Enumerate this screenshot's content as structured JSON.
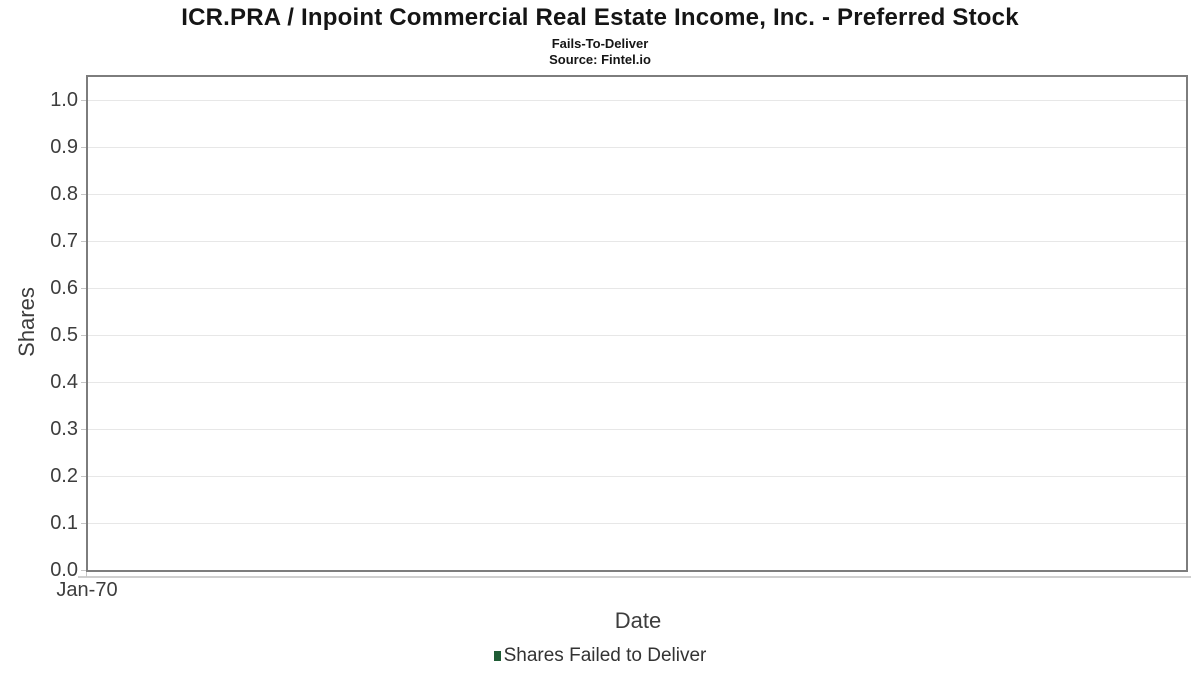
{
  "header": {
    "title": "ICR.PRA / Inpoint Commercial Real Estate Income, Inc. - Preferred Stock",
    "subtitle": "Fails-To-Deliver",
    "source": "Source: Fintel.io"
  },
  "chart_data": {
    "type": "bar",
    "title": "ICR.PRA / Inpoint Commercial Real Estate Income, Inc. - Preferred Stock",
    "subtitle": "Fails-To-Deliver",
    "source": "Source: Fintel.io",
    "xlabel": "Date",
    "ylabel": "Shares",
    "x_tick_labels": [
      "Jan-70"
    ],
    "y_ticks": [
      0.0,
      0.1,
      0.2,
      0.3,
      0.4,
      0.5,
      0.6,
      0.7,
      0.8,
      0.9,
      1.0
    ],
    "y_tick_decimals": 1,
    "ylim": [
      0,
      1.05
    ],
    "grid": true,
    "legend": {
      "position": "bottom",
      "entries": [
        {
          "label": "Shares Failed to Deliver",
          "color": "#1f5c35"
        }
      ]
    },
    "series": [
      {
        "name": "Shares Failed to Deliver",
        "x": [],
        "values": []
      }
    ],
    "colors": {
      "accent_green": "#1f5c35",
      "plot_border": "#7d7d7d",
      "gridline": "#e7e7e7",
      "axis_line": "#cfcfcf",
      "tick_mark": "#c6c6c6",
      "title_text": "#151515",
      "axis_text": "#3d3d3d",
      "legend_text": "#333333"
    }
  }
}
